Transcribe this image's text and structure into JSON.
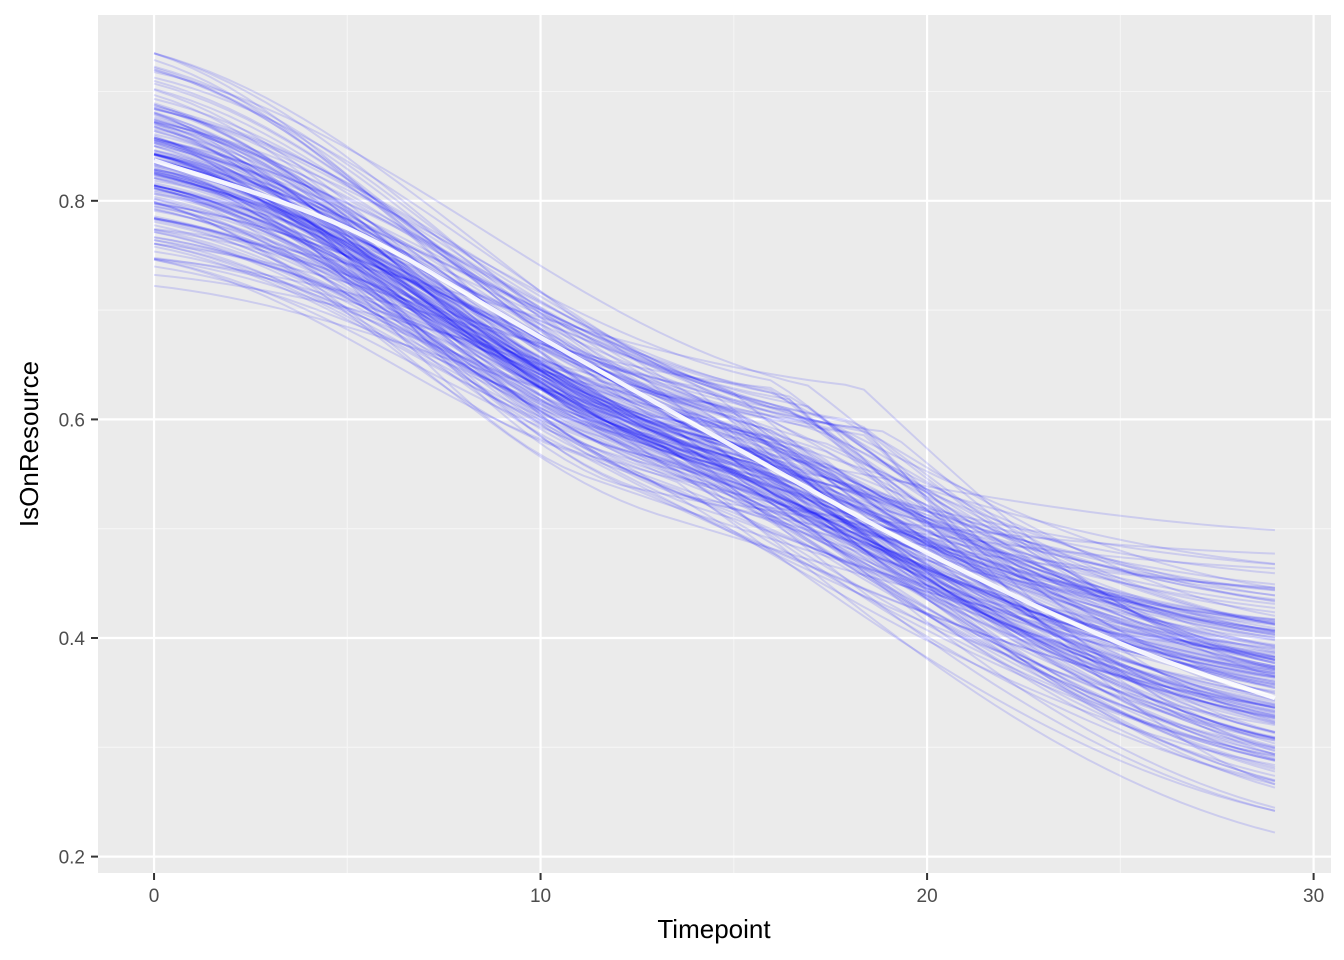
{
  "chart_data": {
    "type": "line",
    "title": "",
    "xlabel": "Timepoint",
    "ylabel": "IsOnResource",
    "xlim": [
      -1.45,
      30.45
    ],
    "ylim": [
      0.185,
      0.97
    ],
    "x_ticks": [
      0,
      10,
      20,
      30
    ],
    "x_tick_labels": [
      "0",
      "10",
      "20",
      "30"
    ],
    "y_ticks": [
      0.2,
      0.4,
      0.6,
      0.8
    ],
    "y_tick_labels": [
      "0.2",
      "0.4",
      "0.6",
      "0.8"
    ],
    "x_minor_ticks": [
      5,
      15,
      25
    ],
    "y_minor_ticks": [
      0.3,
      0.5,
      0.7,
      0.9
    ],
    "grid": true,
    "legend": "none",
    "x_range": [
      0,
      29
    ],
    "mean_series": {
      "x": [
        0,
        5,
        10,
        15,
        20,
        25,
        29
      ],
      "y": [
        0.837,
        0.775,
        0.675,
        0.575,
        0.478,
        0.395,
        0.345
      ]
    },
    "draw_series": {
      "count": 180,
      "start_y_range": [
        0.705,
        0.935
      ],
      "mid_y_range": [
        0.51,
        0.64
      ],
      "end_y_range": [
        0.222,
        0.505
      ]
    },
    "colors": {
      "panel_background": "#ebebeb",
      "grid_major": "#ffffff",
      "grid_minor": "#f5f5f5",
      "series": "#0000ff",
      "mean_line": "#ffffff"
    }
  }
}
